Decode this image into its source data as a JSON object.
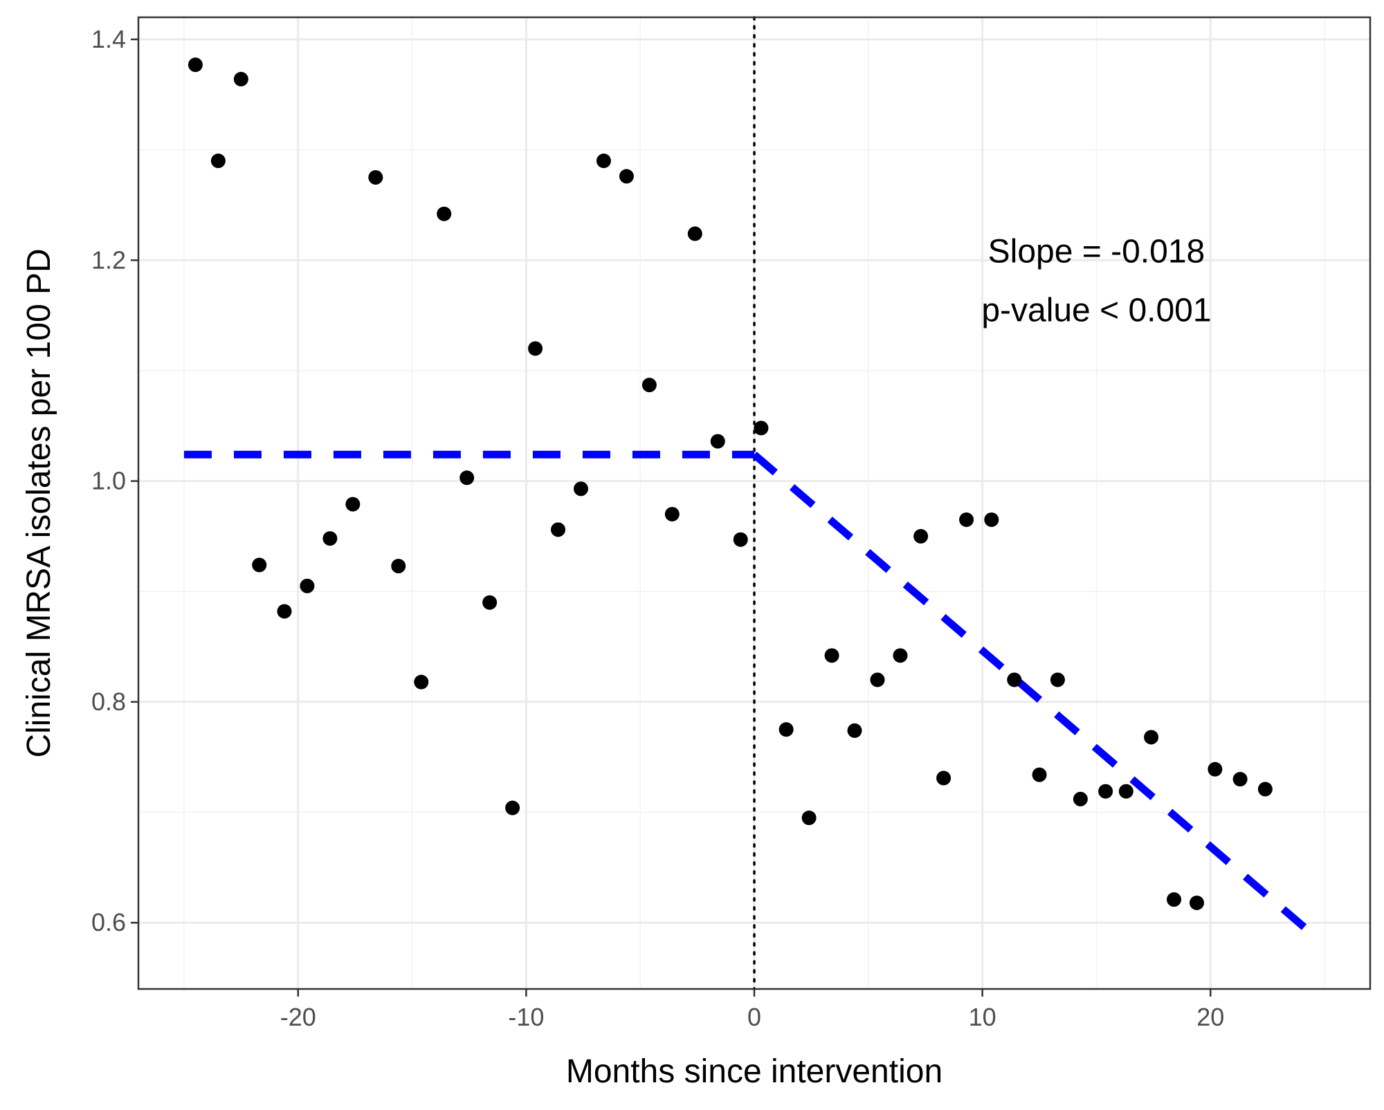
{
  "chart_data": {
    "type": "scatter",
    "title": "",
    "xlabel": "Months since intervention",
    "ylabel": "Clinical MRSA isolates per 100 PD",
    "xlim": [
      -27,
      27
    ],
    "ylim": [
      0.54,
      1.42
    ],
    "x_ticks": [
      -20,
      -10,
      0,
      10,
      20
    ],
    "x_tick_labels": [
      "-20",
      "-10",
      "0",
      "10",
      "20"
    ],
    "y_ticks": [
      0.6,
      0.8,
      1.0,
      1.2,
      1.4
    ],
    "y_tick_labels": [
      "0.6",
      "0.8",
      "1.0",
      "1.2",
      "1.4"
    ],
    "grid": true,
    "intervention_x": 0,
    "points": [
      {
        "x": -24.5,
        "y": 1.377
      },
      {
        "x": -23.5,
        "y": 1.29
      },
      {
        "x": -22.5,
        "y": 1.364
      },
      {
        "x": -21.7,
        "y": 0.924
      },
      {
        "x": -20.6,
        "y": 0.882
      },
      {
        "x": -19.6,
        "y": 0.905
      },
      {
        "x": -18.6,
        "y": 0.948
      },
      {
        "x": -17.6,
        "y": 0.979
      },
      {
        "x": -16.6,
        "y": 1.275
      },
      {
        "x": -15.6,
        "y": 0.923
      },
      {
        "x": -14.6,
        "y": 0.818
      },
      {
        "x": -13.6,
        "y": 1.242
      },
      {
        "x": -12.6,
        "y": 1.003
      },
      {
        "x": -11.6,
        "y": 0.89
      },
      {
        "x": -10.6,
        "y": 0.704
      },
      {
        "x": -9.6,
        "y": 1.12
      },
      {
        "x": -8.6,
        "y": 0.956
      },
      {
        "x": -7.6,
        "y": 0.993
      },
      {
        "x": -6.6,
        "y": 1.29
      },
      {
        "x": -5.6,
        "y": 1.276
      },
      {
        "x": -4.6,
        "y": 1.087
      },
      {
        "x": -3.6,
        "y": 0.97
      },
      {
        "x": -2.6,
        "y": 1.224
      },
      {
        "x": -1.6,
        "y": 1.036
      },
      {
        "x": -0.6,
        "y": 0.947
      },
      {
        "x": 0.3,
        "y": 1.048
      },
      {
        "x": 1.4,
        "y": 0.775
      },
      {
        "x": 2.4,
        "y": 0.695
      },
      {
        "x": 3.4,
        "y": 0.842
      },
      {
        "x": 4.4,
        "y": 0.774
      },
      {
        "x": 5.4,
        "y": 0.82
      },
      {
        "x": 6.4,
        "y": 0.842
      },
      {
        "x": 7.3,
        "y": 0.95
      },
      {
        "x": 8.3,
        "y": 0.731
      },
      {
        "x": 9.3,
        "y": 0.965
      },
      {
        "x": 10.4,
        "y": 0.965
      },
      {
        "x": 11.4,
        "y": 0.82
      },
      {
        "x": 12.5,
        "y": 0.734
      },
      {
        "x": 13.3,
        "y": 0.82
      },
      {
        "x": 14.3,
        "y": 0.712
      },
      {
        "x": 15.4,
        "y": 0.719
      },
      {
        "x": 16.3,
        "y": 0.719
      },
      {
        "x": 17.4,
        "y": 0.768
      },
      {
        "x": 18.4,
        "y": 0.621
      },
      {
        "x": 19.4,
        "y": 0.618
      },
      {
        "x": 20.2,
        "y": 0.739
      },
      {
        "x": 21.3,
        "y": 0.73
      },
      {
        "x": 22.4,
        "y": 0.721
      }
    ],
    "fit_lines": [
      {
        "segment": "pre-intervention",
        "x": [
          -25,
          0
        ],
        "y": [
          1.024,
          1.024
        ],
        "style": "dashed",
        "color": "#0000ff"
      },
      {
        "segment": "post-intervention",
        "x": [
          0,
          24.5
        ],
        "y": [
          1.024,
          0.589
        ],
        "style": "dashed",
        "color": "#0000ff"
      }
    ],
    "annotations": [
      "Slope = -0.018",
      "p-value < 0.001"
    ]
  },
  "colors": {
    "points": "#000000",
    "fit_line": "#0000ff",
    "grid_major": "#ebebeb",
    "grid_minor": "#f2f2f2",
    "panel_border": "#333333",
    "intervention_line": "#000000"
  }
}
